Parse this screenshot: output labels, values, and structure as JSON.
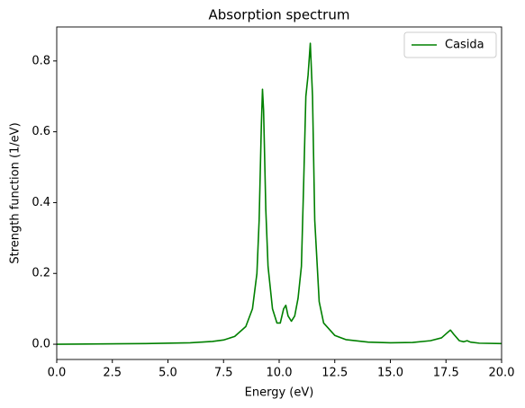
{
  "chart_data": {
    "type": "line",
    "title": "Absorption spectrum",
    "xlabel": "Energy (eV)",
    "ylabel": "Strength function (1/eV)",
    "x": [
      0,
      2,
      4,
      6,
      7,
      7.5,
      8,
      8.5,
      8.8,
      9.0,
      9.1,
      9.2,
      9.25,
      9.3,
      9.4,
      9.5,
      9.7,
      9.9,
      10.05,
      10.2,
      10.3,
      10.4,
      10.55,
      10.7,
      10.85,
      11.0,
      11.1,
      11.2,
      11.3,
      11.4,
      11.5,
      11.6,
      11.8,
      12.0,
      12.5,
      13,
      14,
      15,
      16,
      16.8,
      17.3,
      17.55,
      17.7,
      17.85,
      18.1,
      18.3,
      18.45,
      18.6,
      19,
      20
    ],
    "series": [
      {
        "name": "Casida",
        "color": "#008000",
        "values": [
          0.0,
          0.001,
          0.002,
          0.004,
          0.008,
          0.012,
          0.022,
          0.05,
          0.1,
          0.2,
          0.35,
          0.62,
          0.72,
          0.66,
          0.38,
          0.22,
          0.1,
          0.06,
          0.06,
          0.1,
          0.11,
          0.08,
          0.065,
          0.08,
          0.13,
          0.22,
          0.45,
          0.7,
          0.76,
          0.85,
          0.7,
          0.35,
          0.12,
          0.06,
          0.025,
          0.013,
          0.006,
          0.004,
          0.005,
          0.01,
          0.018,
          0.032,
          0.04,
          0.028,
          0.01,
          0.007,
          0.01,
          0.006,
          0.003,
          0.002
        ]
      }
    ],
    "xlim": [
      0,
      20
    ],
    "ylim": [
      -0.043,
      0.896
    ],
    "xticks": [
      {
        "value": 0,
        "label": "0.0"
      },
      2.5,
      {
        "value": 5,
        "label": "5.0"
      },
      7.5,
      {
        "value": 10,
        "label": "10.0"
      },
      12.5,
      {
        "value": 15,
        "label": "15.0"
      },
      17.5,
      {
        "value": 20,
        "label": "20.0"
      }
    ],
    "yticks": [
      {
        "value": 0,
        "label": "0.0"
      },
      0.2,
      0.4,
      0.6,
      0.8
    ],
    "legend": "upper right",
    "grid": false
  }
}
